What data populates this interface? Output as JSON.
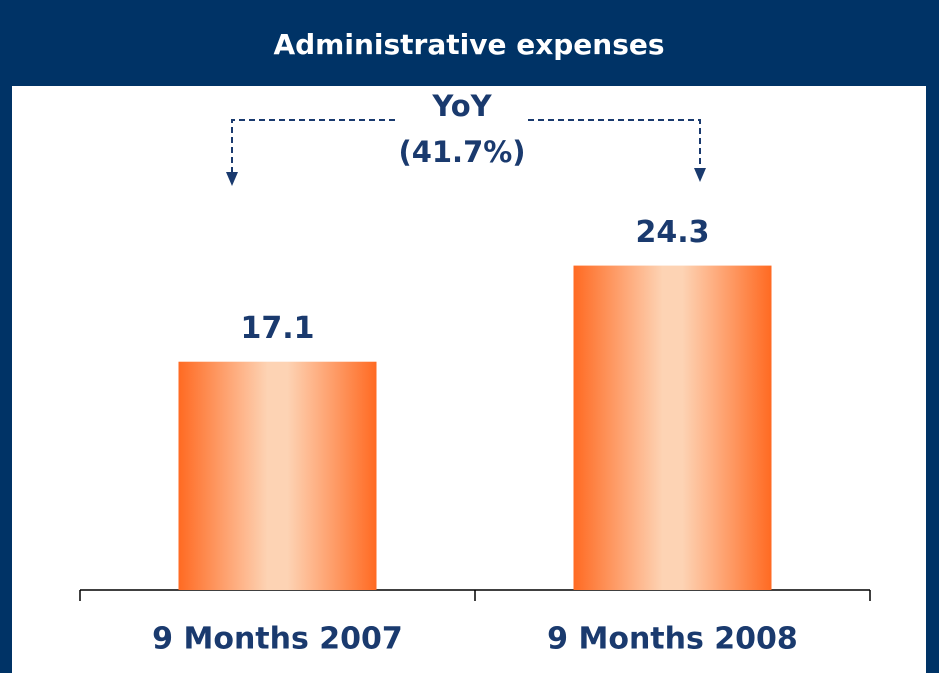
{
  "chart_data": {
    "type": "bar",
    "title": "Administrative expenses",
    "annotation": [
      "YoY",
      "(41.7%)"
    ],
    "categories": [
      "9 Months 2007",
      "9 Months 2008"
    ],
    "values": [
      17.1,
      24.3
    ],
    "color": "#ff6a2a"
  }
}
